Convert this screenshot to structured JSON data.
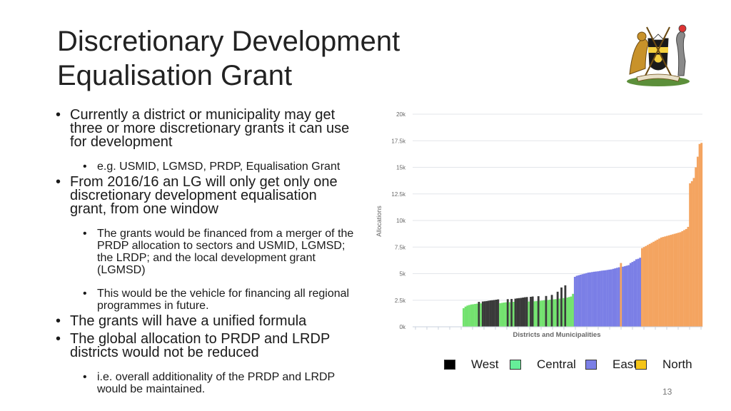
{
  "slide": {
    "title_line1": "Discretionary Development",
    "title_line2": "Equalisation Grant",
    "page_number": "13"
  },
  "bullets": [
    {
      "text": "Currently a district or municipality may get three or more discretionary grants it can use for development",
      "sub": [
        "e.g. USMID, LGMSD, PRDP, Equalisation Grant"
      ]
    },
    {
      "text": "From 2016/16 an LG will only get only one discretionary development equalisation grant, from one window",
      "sub": [
        "The grants would be financed from a merger of the PRDP allocation to sectors and USMID, LGMSD; the LRDP; and the local development grant (LGMSD)",
        "This would be the vehicle for financing all regional programmes in future."
      ]
    },
    {
      "text": "The grants will have a unified formula",
      "sub": []
    },
    {
      "text": "The global allocation to PRDP and LRDP districts would not be reduced",
      "sub": [
        "i.e. overall additionality of the PRDP and LRDP would be maintained."
      ]
    }
  ],
  "legend": [
    {
      "label": "West",
      "color": "#000000"
    },
    {
      "label": "Central",
      "color": "#66ee99"
    },
    {
      "label": "East",
      "color": "#7b7fe6"
    },
    {
      "label": "North",
      "color": "#f5c518"
    }
  ],
  "chart_data": {
    "type": "bar",
    "xlabel": "Districts and Municipalities",
    "ylabel": "Allocations",
    "ylim": [
      0,
      20000
    ],
    "yticks": [
      "0k",
      "2.5k",
      "5k",
      "7.5k",
      "10k",
      "12.5k",
      "15k",
      "17.5k",
      "20k"
    ],
    "grid": true,
    "colors": {
      "West": "#3a3a3a",
      "Central": "#73e26f",
      "East": "#7b7fe6",
      "North": "#f4a460"
    },
    "series": [
      {
        "name": "Central",
        "values": [
          1750,
          1900,
          2000,
          2050,
          2100,
          2120,
          2150,
          2180,
          2200,
          2220,
          2250,
          2280,
          2300,
          2320,
          2350,
          2380,
          2400,
          2420,
          2450,
          2470,
          2500,
          2520,
          2550,
          2580,
          2600,
          2650,
          2700,
          2750,
          2800,
          2850,
          3100
        ]
      },
      {
        "name": "West",
        "values": [
          2350,
          2380,
          2400,
          2420,
          2450,
          2480,
          2500,
          2520,
          2550,
          2580,
          2600,
          2620,
          2650,
          2680,
          2700,
          2720,
          2750,
          2780,
          2800,
          2820,
          2850,
          2880,
          2900,
          3000,
          3300,
          3700,
          3900
        ]
      },
      {
        "name": "East",
        "values": [
          4700,
          4800,
          4850,
          4900,
          4950,
          5000,
          5050,
          5100,
          5120,
          5150,
          5180,
          5200,
          5220,
          5250,
          5280,
          5300,
          5320,
          5350,
          5380,
          5400,
          5450,
          5500,
          5550,
          5600,
          5650,
          5700,
          5750,
          5800,
          6000,
          6100,
          6200,
          6350,
          6400,
          6500
        ]
      },
      {
        "name": "North",
        "values": [
          6000,
          7400,
          7500,
          7600,
          7700,
          7800,
          7900,
          8000,
          8100,
          8200,
          8300,
          8400,
          8450,
          8500,
          8550,
          8600,
          8650,
          8700,
          8750,
          8800,
          8850,
          8900,
          9000,
          9100,
          9200,
          9400,
          13500,
          13700,
          14000,
          15000,
          16000,
          17200,
          17300
        ]
      }
    ],
    "bars": [
      {
        "region": "Central",
        "value": 1750
      },
      {
        "region": "Central",
        "value": 1900
      },
      {
        "region": "Central",
        "value": 2000
      },
      {
        "region": "Central",
        "value": 2050
      },
      {
        "region": "Central",
        "value": 2100
      },
      {
        "region": "Central",
        "value": 2120
      },
      {
        "region": "Central",
        "value": 2150
      },
      {
        "region": "Central",
        "value": 2180
      },
      {
        "region": "West",
        "value": 2350
      },
      {
        "region": "Central",
        "value": 2200
      },
      {
        "region": "West",
        "value": 2380
      },
      {
        "region": "West",
        "value": 2400
      },
      {
        "region": "West",
        "value": 2420
      },
      {
        "region": "West",
        "value": 2450
      },
      {
        "region": "West",
        "value": 2480
      },
      {
        "region": "West",
        "value": 2500
      },
      {
        "region": "West",
        "value": 2520
      },
      {
        "region": "West",
        "value": 2550
      },
      {
        "region": "West",
        "value": 2580
      },
      {
        "region": "Central",
        "value": 2220
      },
      {
        "region": "Central",
        "value": 2250
      },
      {
        "region": "Central",
        "value": 2280
      },
      {
        "region": "Central",
        "value": 2300
      },
      {
        "region": "West",
        "value": 2600
      },
      {
        "region": "Central",
        "value": 2320
      },
      {
        "region": "West",
        "value": 2620
      },
      {
        "region": "Central",
        "value": 2350
      },
      {
        "region": "West",
        "value": 2650
      },
      {
        "region": "West",
        "value": 2680
      },
      {
        "region": "West",
        "value": 2700
      },
      {
        "region": "West",
        "value": 2720
      },
      {
        "region": "West",
        "value": 2750
      },
      {
        "region": "West",
        "value": 2780
      },
      {
        "region": "West",
        "value": 2800
      },
      {
        "region": "Central",
        "value": 2380
      },
      {
        "region": "West",
        "value": 2820
      },
      {
        "region": "West",
        "value": 2850
      },
      {
        "region": "Central",
        "value": 2400
      },
      {
        "region": "Central",
        "value": 2420
      },
      {
        "region": "West",
        "value": 2880
      },
      {
        "region": "Central",
        "value": 2450
      },
      {
        "region": "Central",
        "value": 2470
      },
      {
        "region": "Central",
        "value": 2500
      },
      {
        "region": "West",
        "value": 2900
      },
      {
        "region": "Central",
        "value": 2520
      },
      {
        "region": "Central",
        "value": 2550
      },
      {
        "region": "West",
        "value": 3000
      },
      {
        "region": "Central",
        "value": 2580
      },
      {
        "region": "Central",
        "value": 2600
      },
      {
        "region": "West",
        "value": 3300
      },
      {
        "region": "Central",
        "value": 2650
      },
      {
        "region": "West",
        "value": 3700
      },
      {
        "region": "Central",
        "value": 2700
      },
      {
        "region": "West",
        "value": 3900
      },
      {
        "region": "Central",
        "value": 2750
      },
      {
        "region": "Central",
        "value": 2800
      },
      {
        "region": "Central",
        "value": 2850
      },
      {
        "region": "Central",
        "value": 3100
      },
      {
        "region": "East",
        "value": 4700
      },
      {
        "region": "East",
        "value": 4800
      },
      {
        "region": "East",
        "value": 4850
      },
      {
        "region": "East",
        "value": 4900
      },
      {
        "region": "East",
        "value": 4950
      },
      {
        "region": "East",
        "value": 5000
      },
      {
        "region": "East",
        "value": 5050
      },
      {
        "region": "East",
        "value": 5100
      },
      {
        "region": "East",
        "value": 5120
      },
      {
        "region": "East",
        "value": 5150
      },
      {
        "region": "East",
        "value": 5180
      },
      {
        "region": "East",
        "value": 5200
      },
      {
        "region": "East",
        "value": 5220
      },
      {
        "region": "East",
        "value": 5250
      },
      {
        "region": "East",
        "value": 5280
      },
      {
        "region": "East",
        "value": 5300
      },
      {
        "region": "East",
        "value": 5320
      },
      {
        "region": "East",
        "value": 5350
      },
      {
        "region": "East",
        "value": 5380
      },
      {
        "region": "East",
        "value": 5400
      },
      {
        "region": "East",
        "value": 5450
      },
      {
        "region": "East",
        "value": 5500
      },
      {
        "region": "East",
        "value": 5550
      },
      {
        "region": "East",
        "value": 5600
      },
      {
        "region": "North",
        "value": 6000
      },
      {
        "region": "East",
        "value": 5650
      },
      {
        "region": "East",
        "value": 5700
      },
      {
        "region": "East",
        "value": 5750
      },
      {
        "region": "East",
        "value": 5800
      },
      {
        "region": "East",
        "value": 6000
      },
      {
        "region": "East",
        "value": 6100
      },
      {
        "region": "East",
        "value": 6200
      },
      {
        "region": "East",
        "value": 6350
      },
      {
        "region": "East",
        "value": 6400
      },
      {
        "region": "East",
        "value": 6500
      },
      {
        "region": "North",
        "value": 7400
      },
      {
        "region": "North",
        "value": 7500
      },
      {
        "region": "North",
        "value": 7600
      },
      {
        "region": "North",
        "value": 7700
      },
      {
        "region": "North",
        "value": 7800
      },
      {
        "region": "North",
        "value": 7900
      },
      {
        "region": "North",
        "value": 8000
      },
      {
        "region": "North",
        "value": 8100
      },
      {
        "region": "North",
        "value": 8200
      },
      {
        "region": "North",
        "value": 8300
      },
      {
        "region": "North",
        "value": 8400
      },
      {
        "region": "North",
        "value": 8450
      },
      {
        "region": "North",
        "value": 8500
      },
      {
        "region": "North",
        "value": 8550
      },
      {
        "region": "North",
        "value": 8600
      },
      {
        "region": "North",
        "value": 8650
      },
      {
        "region": "North",
        "value": 8700
      },
      {
        "region": "North",
        "value": 8750
      },
      {
        "region": "North",
        "value": 8800
      },
      {
        "region": "North",
        "value": 8850
      },
      {
        "region": "North",
        "value": 8900
      },
      {
        "region": "North",
        "value": 9000
      },
      {
        "region": "North",
        "value": 9100
      },
      {
        "region": "North",
        "value": 9200
      },
      {
        "region": "North",
        "value": 9400
      },
      {
        "region": "North",
        "value": 13500
      },
      {
        "region": "North",
        "value": 13700
      },
      {
        "region": "North",
        "value": 14000
      },
      {
        "region": "North",
        "value": 15000
      },
      {
        "region": "North",
        "value": 16000
      },
      {
        "region": "North",
        "value": 17200
      },
      {
        "region": "North",
        "value": 17300
      }
    ]
  }
}
